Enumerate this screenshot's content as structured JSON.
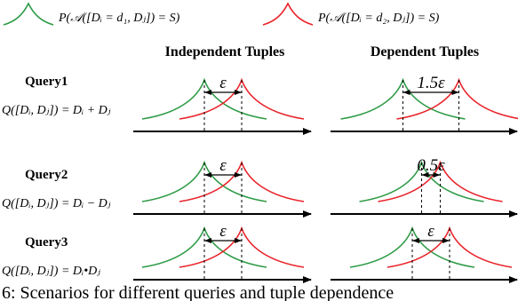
{
  "legend": {
    "green_text": "P(𝒜([Dᵢ = d₁, Dⱼ]) = S)",
    "red_text": "P(𝒜([Dᵢ = d₂, Dⱼ]) = S)",
    "green_color": "#2e9b46",
    "red_color": "#e8232a"
  },
  "headers": {
    "left": "Independent Tuples",
    "right": "Dependent Tuples"
  },
  "queries": [
    {
      "name": "Query1",
      "formula": "Q([Dᵢ, Dⱼ]) = Dᵢ + Dⱼ",
      "left_gap_label": "ε",
      "right_gap_label": "1.5ε",
      "left_gap": 1.0,
      "right_gap": 1.5
    },
    {
      "name": "Query2",
      "formula": "Q([Dᵢ, Dⱼ]) = Dᵢ − Dⱼ",
      "left_gap_label": "ε",
      "right_gap_label": "0.5ε",
      "left_gap": 1.0,
      "right_gap": 0.5
    },
    {
      "name": "Query3",
      "formula": "Q([Dᵢ, Dⱼ]) = Dᵢ•Dⱼ",
      "left_gap_label": "ε",
      "right_gap_label": "ε",
      "left_gap": 1.0,
      "right_gap": 1.0
    }
  ],
  "caption": "6: Scenarios for different queries and tuple dependence"
}
